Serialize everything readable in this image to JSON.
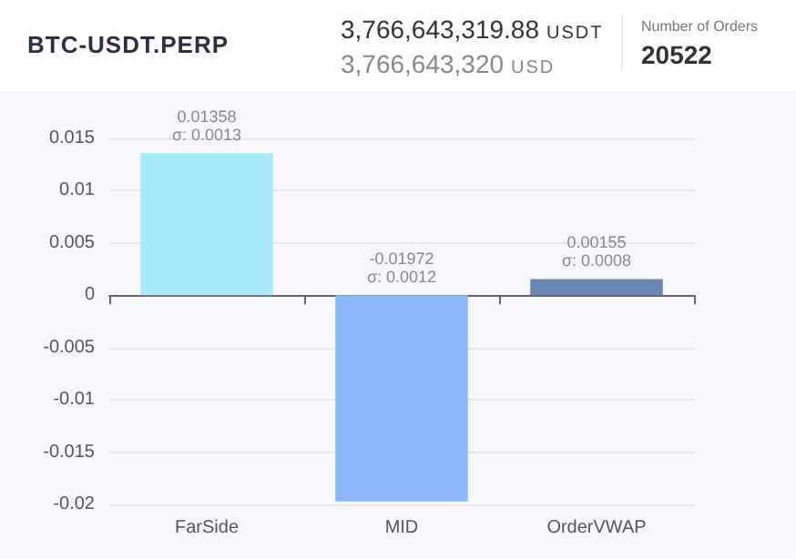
{
  "chart_data": {
    "type": "bar",
    "title": "BTC-USDT.PERP",
    "annotations": [
      "3,766,643,319.88 USDT",
      "3,766,643,320 USD",
      "Number of Orders",
      "20522"
    ],
    "categories": [
      "FarSide",
      "MID",
      "OrderVWAP"
    ],
    "values": [
      0.01358,
      -0.01972,
      0.00155
    ],
    "colors": [
      "#a8e9fb",
      "#8ab8f8",
      "#6a87b5"
    ],
    "value_labels": [
      "0.01358\nσ: 0.0013",
      "-0.01972\nσ: 0.0012",
      "0.00155\nσ: 0.0008"
    ],
    "ylim": [
      -0.02,
      0.015
    ],
    "yticks": [
      -0.02,
      -0.015,
      -0.01,
      -0.005,
      0,
      0.005,
      0.01,
      0.015
    ],
    "grid": "y"
  }
}
